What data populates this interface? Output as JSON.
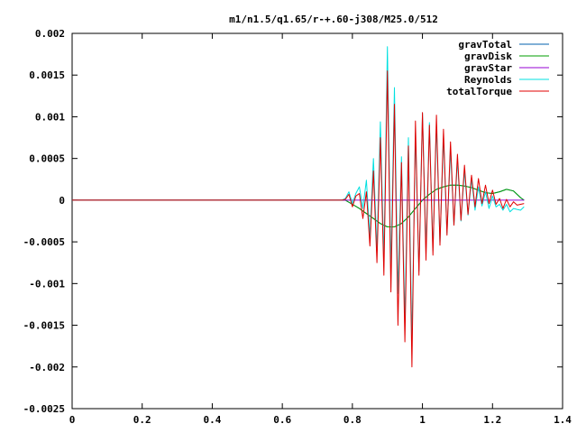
{
  "chart_data": {
    "type": "line",
    "title": "m1/n1.5/q1.65/r-+.60-j308/M25.0/512",
    "xlabel": "",
    "ylabel": "",
    "xlim": [
      0,
      1.4
    ],
    "ylim": [
      -0.0025,
      0.002
    ],
    "grid": false,
    "legend_position": "top-right",
    "x_ticks": [
      "0",
      "0.2",
      "0.4",
      "0.6",
      "0.8",
      "1",
      "1.2",
      "1.4"
    ],
    "x_tick_values": [
      0,
      0.2,
      0.4,
      0.6,
      0.8,
      1.0,
      1.2,
      1.4
    ],
    "y_ticks": [
      "0.002",
      "0.0015",
      "0.001",
      "0.0005",
      "0",
      "-0.0005",
      "-0.001",
      "-0.0015",
      "-0.002",
      "-0.0025"
    ],
    "y_tick_values": [
      0.002,
      0.0015,
      0.001,
      0.0005,
      0,
      -0.0005,
      -0.001,
      -0.0015,
      -0.002,
      -0.0025
    ],
    "series": [
      {
        "name": "gravTotal",
        "color": "#0060ad",
        "x": [
          0.0,
          0.78,
          0.8,
          0.82,
          0.84,
          0.86,
          0.88,
          0.9,
          0.92,
          0.94,
          0.96,
          0.98,
          1.0,
          1.02,
          1.04,
          1.06,
          1.08,
          1.1,
          1.12,
          1.14,
          1.16,
          1.18,
          1.2,
          1.22,
          1.24,
          1.26,
          1.28,
          1.29
        ],
        "y": [
          0,
          0,
          -5e-05,
          -0.0001,
          -0.00016,
          -0.00022,
          -0.00028,
          -0.00032,
          -0.00032,
          -0.00028,
          -0.0002,
          -0.0001,
          0,
          7e-05,
          0.00013,
          0.00016,
          0.00018,
          0.00018,
          0.00017,
          0.00015,
          0.00012,
          9e-05,
          8e-05,
          0.0001,
          0.00013,
          0.00011,
          3e-05,
          0.0
        ]
      },
      {
        "name": "gravDisk",
        "color": "#009e00",
        "x": [
          0.0,
          0.78,
          0.8,
          0.82,
          0.84,
          0.86,
          0.88,
          0.9,
          0.92,
          0.94,
          0.96,
          0.98,
          1.0,
          1.02,
          1.04,
          1.06,
          1.08,
          1.1,
          1.12,
          1.14,
          1.16,
          1.18,
          1.2,
          1.22,
          1.24,
          1.26,
          1.28,
          1.29
        ],
        "y": [
          0,
          0,
          -5e-05,
          -0.0001,
          -0.00016,
          -0.00022,
          -0.00028,
          -0.00032,
          -0.00032,
          -0.00028,
          -0.0002,
          -0.0001,
          0,
          7e-05,
          0.00013,
          0.00016,
          0.00018,
          0.00018,
          0.00017,
          0.00015,
          0.00012,
          9e-05,
          8e-05,
          0.0001,
          0.00013,
          0.00011,
          3e-05,
          0.0
        ]
      },
      {
        "name": "gravStar",
        "color": "#9400d3",
        "x": [
          0.0,
          1.29
        ],
        "y": [
          0,
          0
        ]
      },
      {
        "name": "Reynolds",
        "color": "#00e0e0",
        "x": [
          0.0,
          0.77,
          0.78,
          0.79,
          0.8,
          0.81,
          0.82,
          0.83,
          0.84,
          0.85,
          0.86,
          0.87,
          0.88,
          0.89,
          0.9,
          0.91,
          0.92,
          0.93,
          0.94,
          0.95,
          0.96,
          0.97,
          0.98,
          0.99,
          1.0,
          1.01,
          1.02,
          1.03,
          1.04,
          1.05,
          1.06,
          1.07,
          1.08,
          1.09,
          1.1,
          1.11,
          1.12,
          1.13,
          1.14,
          1.15,
          1.16,
          1.17,
          1.18,
          1.19,
          1.2,
          1.21,
          1.22,
          1.23,
          1.24,
          1.25,
          1.26,
          1.27,
          1.28,
          1.29
        ],
        "y": [
          0,
          0,
          2e-05,
          0.0001,
          -4e-05,
          8e-05,
          0.00016,
          -0.0001,
          0.00024,
          -0.00044,
          0.0005,
          -0.0006,
          0.00094,
          -0.0007,
          0.00184,
          -0.00085,
          0.00135,
          -0.00112,
          0.00052,
          -0.00144,
          0.00075,
          -0.0017,
          0.0008,
          -0.00085,
          0.00104,
          -0.0006,
          0.00093,
          -0.0006,
          0.0009,
          -0.00052,
          0.00075,
          -0.0004,
          0.0006,
          -0.0003,
          0.00048,
          -0.00025,
          0.00035,
          -0.00018,
          0.00025,
          -0.00012,
          0.00016,
          -7e-05,
          0.0001,
          -0.0001,
          5e-05,
          -8e-05,
          -5e-05,
          -0.00012,
          -5e-05,
          -0.00014,
          -0.0001,
          -0.00011,
          -0.00012,
          -8e-05
        ]
      },
      {
        "name": "totalTorque",
        "color": "#e00000",
        "x": [
          0.0,
          0.77,
          0.78,
          0.79,
          0.8,
          0.81,
          0.82,
          0.83,
          0.84,
          0.85,
          0.86,
          0.87,
          0.88,
          0.89,
          0.9,
          0.91,
          0.92,
          0.93,
          0.94,
          0.95,
          0.96,
          0.97,
          0.98,
          0.99,
          1.0,
          1.01,
          1.02,
          1.03,
          1.04,
          1.05,
          1.06,
          1.07,
          1.08,
          1.09,
          1.1,
          1.11,
          1.12,
          1.13,
          1.14,
          1.15,
          1.16,
          1.17,
          1.18,
          1.19,
          1.2,
          1.21,
          1.22,
          1.23,
          1.24,
          1.25,
          1.26,
          1.27,
          1.28,
          1.29
        ],
        "y": [
          0,
          0,
          1e-05,
          7e-05,
          -8e-05,
          5e-05,
          8e-05,
          -0.00022,
          0.0001,
          -0.00055,
          0.00035,
          -0.00075,
          0.00075,
          -0.0009,
          0.00155,
          -0.0011,
          0.00115,
          -0.0015,
          0.00045,
          -0.0017,
          0.00065,
          -0.002,
          0.00095,
          -0.0009,
          0.00105,
          -0.00072,
          0.0009,
          -0.00066,
          0.00102,
          -0.00054,
          0.00085,
          -0.00042,
          0.0007,
          -0.0003,
          0.00055,
          -0.00024,
          0.00042,
          -0.00017,
          0.0003,
          -8e-05,
          0.00026,
          -4e-05,
          0.00018,
          -4e-05,
          0.00012,
          -5e-05,
          2e-05,
          -0.0001,
          1e-05,
          -8e-05,
          -2e-05,
          -6e-05,
          -5e-05,
          -4e-05
        ]
      }
    ]
  }
}
